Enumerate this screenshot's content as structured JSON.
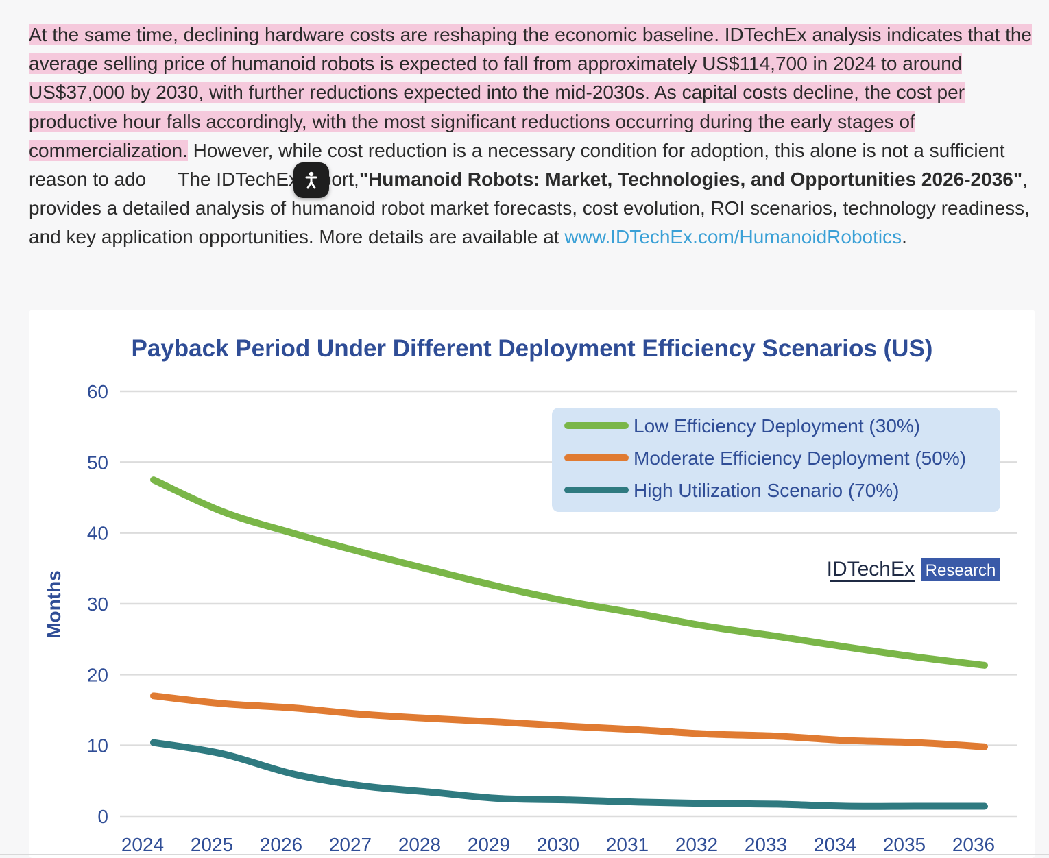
{
  "article": {
    "highlighted": "At the same time, declining hardware costs are reshaping the economic baseline. IDTechEx analysis indicates that the average selling price of humanoid robots is expected to fall from approximately US$114,700 in 2024 to around US$37,000 by 2030, with further reductions expected into the mid-2030s. As capital costs decline, the cost per productive hour falls accordingly, with the most significant reductions occurring during the early stages of commercialization.",
    "continuation": " However, while cost reduction is a necessary condition for adoption, this alone is not a sufficient reason to ado",
    "after_button": "The IDTechEx report,",
    "report_title": "\"Humanoid Robots: Market, Technologies, and Opportunities 2026-2036\"",
    "closing": ", provides a detailed analysis of humanoid robot market forecasts, cost evolution, ROI scenarios, technology readiness, and key application opportunities. More details are available at ",
    "link_text": "www.IDTechEx.com/HumanoidRobotics",
    "final_punct": "."
  },
  "floating_button": {
    "icon": "accessibility-person-icon"
  },
  "chart_data": {
    "type": "line",
    "title": "Payback Period Under Different Deployment Efficiency Scenarios (US)",
    "xlabel": "",
    "ylabel": "Months",
    "x": [
      "2024",
      "2025",
      "2026",
      "2027",
      "2028",
      "2029",
      "2030",
      "2031",
      "2032",
      "2033",
      "2034",
      "2035",
      "2036"
    ],
    "ylim": [
      0,
      60
    ],
    "yticks": [
      0,
      10,
      20,
      30,
      40,
      50,
      60
    ],
    "grid": true,
    "legend_position": "top-right",
    "series": [
      {
        "name": "Low Efficiency Deployment (30%)",
        "color": "#7ab648",
        "values": [
          47.5,
          43,
          40,
          37.3,
          34.8,
          32.4,
          30.3,
          28.6,
          26.8,
          25.4,
          23.9,
          22.5,
          21.3
        ]
      },
      {
        "name": "Moderate Efficiency Deployment (50%)",
        "color": "#e07b32",
        "values": [
          17,
          15.9,
          15.3,
          14.4,
          13.8,
          13.3,
          12.7,
          12.2,
          11.6,
          11.3,
          10.7,
          10.4,
          9.8
        ]
      },
      {
        "name": "High Utilization Scenario (70%)",
        "color": "#2f7a80",
        "values": [
          10.4,
          8.8,
          6.0,
          4.3,
          3.4,
          2.5,
          2.3,
          2.0,
          1.8,
          1.7,
          1.4,
          1.4,
          1.4
        ]
      }
    ],
    "watermark": {
      "brand": "IDTechEx",
      "tag": "Research"
    },
    "colors": {
      "title": "#2f4d96",
      "axis_text": "#2f4d96",
      "grid": "#dcdcdc",
      "legend_bg": "#d4e4f5",
      "watermark_tag_bg": "#3a5aa8"
    }
  }
}
